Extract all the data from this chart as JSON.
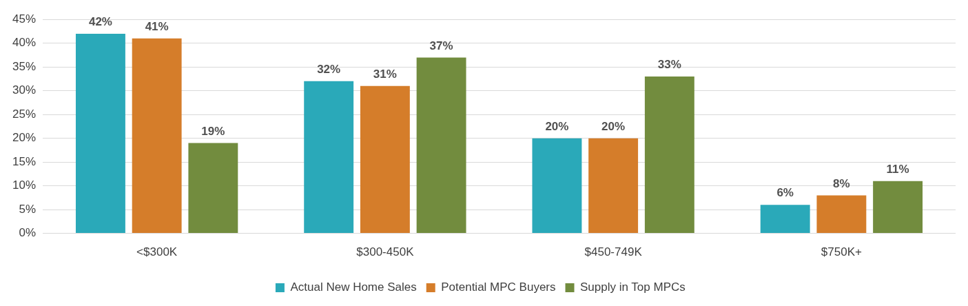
{
  "chart_data": {
    "type": "bar",
    "categories": [
      "<$300K",
      "$300-450K",
      "$450-749K",
      "$750K+"
    ],
    "series": [
      {
        "name": "Actual New Home Sales",
        "color": "#2aa9b9",
        "values": [
          42,
          32,
          20,
          6
        ],
        "value_labels": [
          "42%",
          "32%",
          "20%",
          "6%"
        ]
      },
      {
        "name": "Potential MPC Buyers",
        "color": "#d57d2a",
        "values": [
          41,
          31,
          20,
          8
        ],
        "value_labels": [
          "41%",
          "31%",
          "20%",
          "8%"
        ]
      },
      {
        "name": "Supply in Top MPCs",
        "color": "#728c3e",
        "values": [
          19,
          37,
          33,
          11
        ],
        "value_labels": [
          "19%",
          "37%",
          "33%",
          "11%"
        ]
      }
    ],
    "ylim": [
      0,
      45
    ],
    "yticks": [
      {
        "value": 0,
        "label": "0%"
      },
      {
        "value": 5,
        "label": "5%"
      },
      {
        "value": 10,
        "label": "10%"
      },
      {
        "value": 15,
        "label": "15%"
      },
      {
        "value": 20,
        "label": "20%"
      },
      {
        "value": 25,
        "label": "25%"
      },
      {
        "value": 30,
        "label": "30%"
      },
      {
        "value": 35,
        "label": "35%"
      },
      {
        "value": 40,
        "label": "40%"
      },
      {
        "value": 45,
        "label": "45%"
      }
    ],
    "grid": "y",
    "legend": "bottom"
  }
}
